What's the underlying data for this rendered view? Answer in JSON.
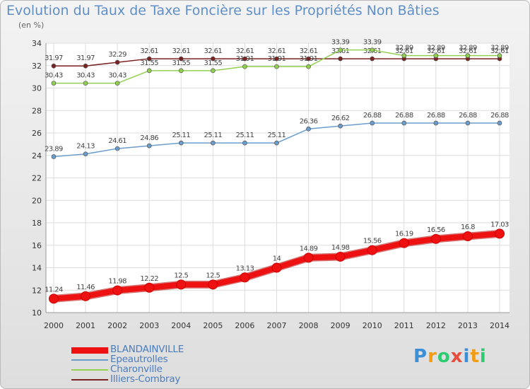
{
  "chart_data": {
    "type": "line",
    "title": "Evolution du Taux de Taxe Foncière sur les Propriétés Non Bâties",
    "ylabel": "(en %)",
    "xlabel": "",
    "categories": [
      "2000",
      "2001",
      "2002",
      "2003",
      "2004",
      "2005",
      "2006",
      "2007",
      "2008",
      "2009",
      "2010",
      "2011",
      "2012",
      "2013",
      "2014"
    ],
    "ylim": [
      10,
      34
    ],
    "yticks": [
      10,
      12,
      14,
      16,
      18,
      20,
      22,
      24,
      26,
      28,
      30,
      32,
      34
    ],
    "grid": true,
    "legend_position": "bottom-left",
    "series": [
      {
        "name": "BLANDAINVILLE",
        "color": "#ee1111",
        "values": [
          11.24,
          11.46,
          11.98,
          12.22,
          12.5,
          12.5,
          13.13,
          14,
          14.89,
          14.98,
          15.56,
          16.19,
          16.56,
          16.8,
          17.03
        ],
        "labels": [
          "11.24",
          "11.46",
          "11.98",
          "12.22",
          "12.5",
          "12.5",
          "13.13",
          "14",
          "14.89",
          "14.98",
          "15.56",
          "16.19",
          "16.56",
          "16.8",
          "17.03"
        ]
      },
      {
        "name": "Epeautrolles",
        "color": "#6b9dcc",
        "values": [
          23.89,
          24.13,
          24.61,
          24.86,
          25.11,
          25.11,
          25.11,
          25.11,
          26.36,
          26.62,
          26.88,
          26.88,
          26.88,
          26.88,
          26.88
        ],
        "labels": [
          "23.89",
          "24.13",
          "24.61",
          "24.86",
          "25.11",
          "25.11",
          "25.11",
          "25.11",
          "26.36",
          "26.62",
          "26.88",
          "26.88",
          "26.88",
          "26.88",
          "26.88"
        ]
      },
      {
        "name": "Charonville",
        "color": "#92d050",
        "values": [
          30.43,
          30.43,
          30.43,
          31.55,
          31.55,
          31.55,
          31.91,
          31.91,
          31.91,
          33.39,
          33.39,
          32.89,
          32.89,
          32.89,
          32.89
        ],
        "labels": [
          "30.43",
          "30.43",
          "30.43",
          "31.55",
          "31.55",
          "31.55",
          "31.91",
          "31.91",
          "31.91",
          "33.39",
          "33.39",
          "32.89",
          "32.89",
          "32.89",
          "32.89"
        ]
      },
      {
        "name": "Illiers-Combray",
        "color": "#7b2222",
        "values": [
          31.97,
          31.97,
          32.29,
          32.61,
          32.61,
          32.61,
          32.61,
          32.61,
          32.61,
          32.61,
          32.61,
          32.61,
          32.61,
          32.61,
          32.61
        ],
        "labels": [
          "31.97",
          "31.97",
          "32.29",
          "32.61",
          "32.61",
          "32.61",
          "32.61",
          "32.61",
          "32.61",
          "32.61",
          "32.61",
          "32.61",
          "32.61",
          "32.61",
          "32.61"
        ]
      }
    ]
  },
  "logo": {
    "text": "Proxiti",
    "letters": [
      "P",
      "r",
      "o",
      "x",
      "i",
      "t",
      "i"
    ],
    "colors": [
      "#3a8fd8",
      "#f39c12",
      "#2ecc71",
      "#e74c3c",
      "#3a8fd8",
      "#f39c12",
      "#2ecc71"
    ]
  }
}
